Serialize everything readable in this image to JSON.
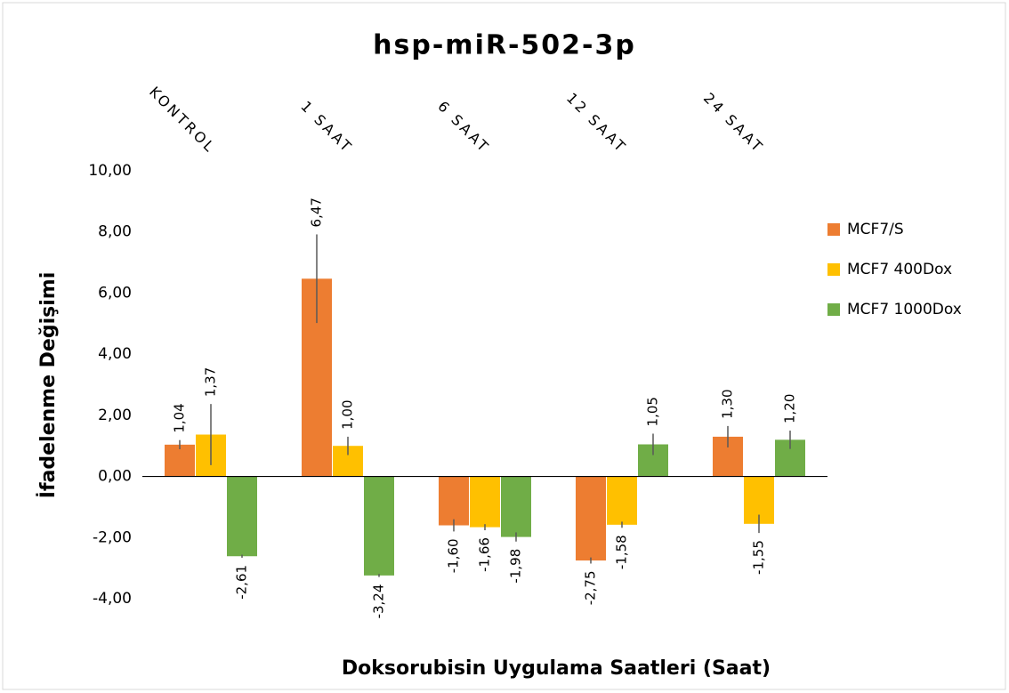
{
  "chart_data": {
    "type": "bar",
    "title": "hsp-miR-502-3p",
    "x_label": "Doksorubisin Uygulama Saatleri (Saat)",
    "y_label": "İfadelenme Değişimi",
    "categories": [
      "KONTROL",
      "1 SAAT",
      "6 SAAT",
      "12 SAAT",
      "24 SAAT"
    ],
    "series": [
      {
        "name": "MCF7/S",
        "color": "#ed7d31",
        "values": [
          1.04,
          6.47,
          -1.6,
          -2.75,
          1.3
        ],
        "errors": [
          0.15,
          1.45,
          0.2,
          0.1,
          0.35
        ],
        "value_labels": [
          "1,04",
          "6,47",
          "-1,60",
          "-2,75",
          "1,30"
        ]
      },
      {
        "name": "MCF7 400Dox",
        "color": "#ffc000",
        "values": [
          1.37,
          1.0,
          -1.66,
          -1.58,
          -1.55
        ],
        "errors": [
          1.0,
          0.3,
          0.1,
          0.1,
          0.3
        ],
        "value_labels": [
          "1,37",
          "1,00",
          "-1,66",
          "-1,58",
          "-1,55"
        ]
      },
      {
        "name": "MCF7 1000Dox",
        "color": "#70ad47",
        "values": [
          -2.61,
          -3.24,
          -1.98,
          1.05,
          1.2
        ],
        "errors": [
          0.05,
          0.05,
          0.15,
          0.35,
          0.3
        ],
        "value_labels": [
          "-2,61",
          "-3,24",
          "-1,98",
          "1,05",
          "1,20"
        ]
      }
    ],
    "ylim": [
      -4,
      10
    ],
    "yticks": [
      {
        "value": -4,
        "label": "-4,00"
      },
      {
        "value": -2,
        "label": "-2,00"
      },
      {
        "value": 0,
        "label": "0,00"
      },
      {
        "value": 2,
        "label": "2,00"
      },
      {
        "value": 4,
        "label": "4,00"
      },
      {
        "value": 6,
        "label": "6,00"
      },
      {
        "value": 8,
        "label": "8,00"
      },
      {
        "value": 10,
        "label": "10,00"
      }
    ],
    "legend": "right"
  }
}
